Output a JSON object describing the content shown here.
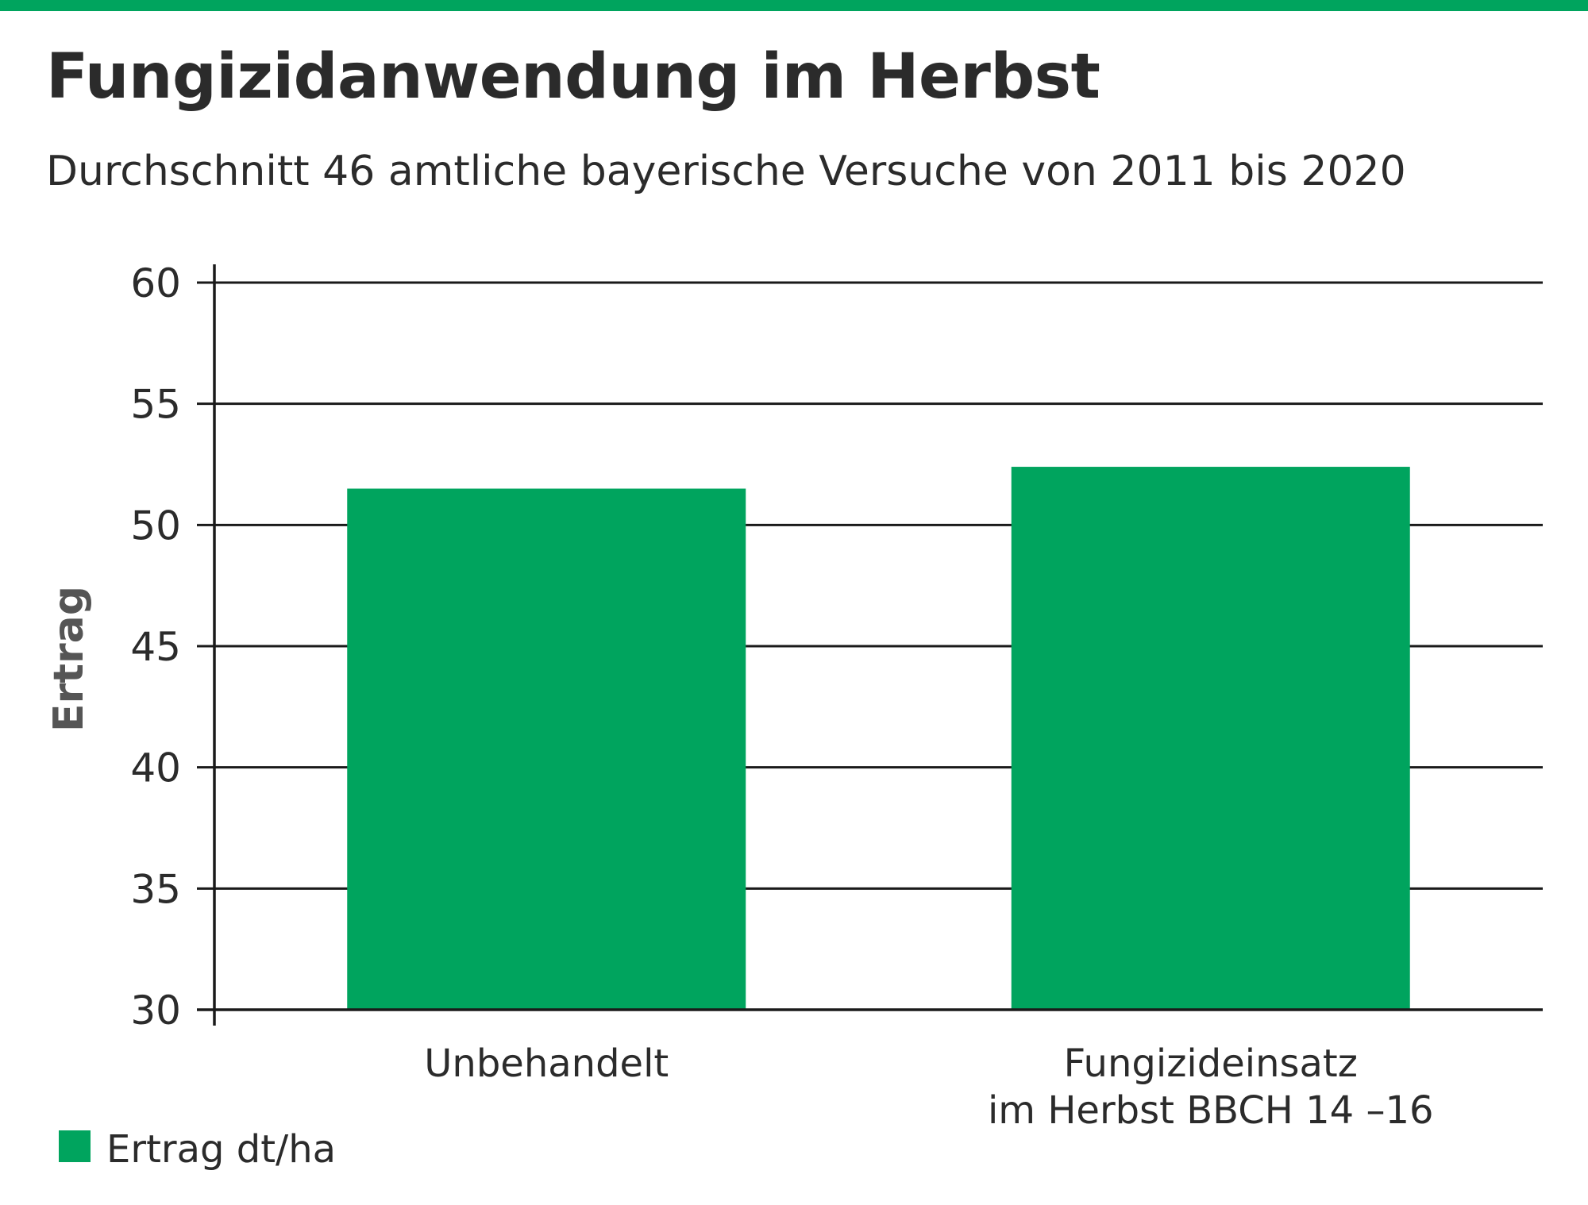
{
  "chart_data": {
    "type": "bar",
    "title": "Fungizidanwendung im Herbst",
    "subtitle": "Durchschnitt 46 amtliche bayerische Versuche von 2011 bis 2020",
    "ylabel": "Ertrag",
    "xlabel": "",
    "ylim": [
      30,
      60
    ],
    "yticks": [
      30,
      35,
      40,
      45,
      50,
      55,
      60
    ],
    "grid": true,
    "categories": [
      [
        "Unbehandelt"
      ],
      [
        "Fungizideinsatz",
        "im Herbst BBCH 14 –16"
      ]
    ],
    "series": [
      {
        "name": "Ertrag dt/ha",
        "values": [
          51.5,
          52.4
        ],
        "color": "#00a45e"
      }
    ],
    "legend_position": "bottom-left"
  }
}
